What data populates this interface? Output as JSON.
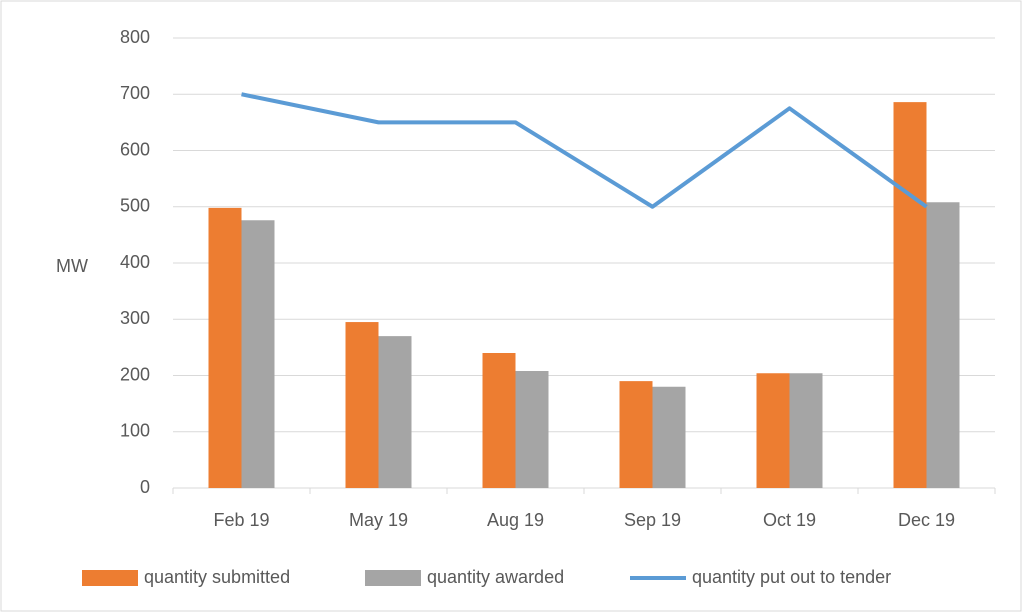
{
  "chart_data": {
    "type": "bar",
    "categories": [
      "Feb 19",
      "May 19",
      "Aug 19",
      "Sep 19",
      "Oct 19",
      "Dec 19"
    ],
    "y_label": "MW",
    "series": [
      {
        "name": "quantity submitted",
        "type": "bar",
        "color": "#ed7d31",
        "values": [
          498,
          295,
          240,
          190,
          204,
          686
        ]
      },
      {
        "name": "quantity awarded",
        "type": "bar",
        "color": "#a5a5a5",
        "values": [
          476,
          270,
          208,
          180,
          204,
          508
        ]
      },
      {
        "name": "quantity put out to tender",
        "type": "line",
        "color": "#5b9bd5",
        "values": [
          700,
          650,
          650,
          500,
          675,
          500
        ]
      }
    ],
    "ylim": [
      0,
      800
    ],
    "yticks": [
      0,
      100,
      200,
      300,
      400,
      500,
      600,
      700,
      800
    ],
    "grid": true,
    "legend": "bottom"
  }
}
